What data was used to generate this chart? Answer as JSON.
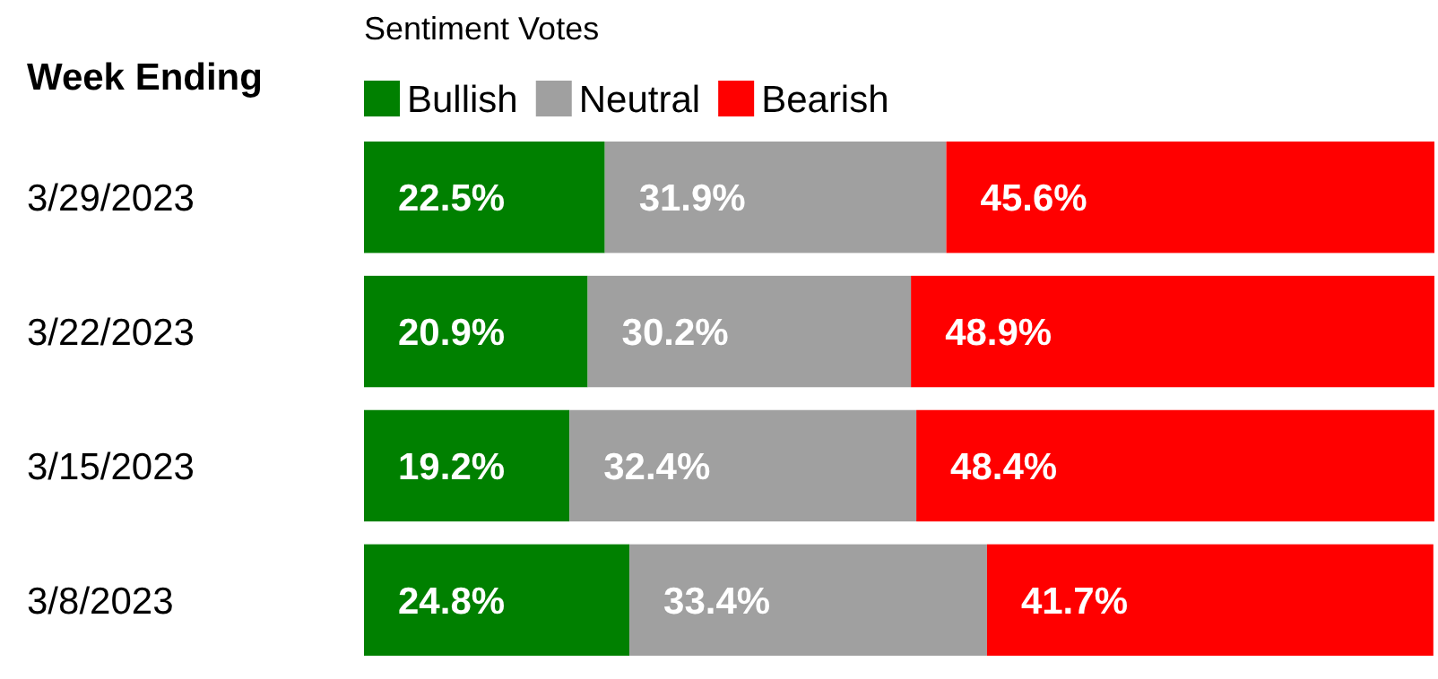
{
  "chart_data": {
    "type": "bar",
    "orientation": "horizontal",
    "stacked": true,
    "legend_title": "Sentiment Votes",
    "ylabel": "Week Ending",
    "categories": [
      "3/29/2023",
      "3/22/2023",
      "3/15/2023",
      "3/8/2023"
    ],
    "xlim": [
      0,
      100
    ],
    "tick_labels": "y",
    "legend": "top",
    "series": [
      {
        "name": "Bullish",
        "color": "#008000",
        "values": [
          22.5,
          20.9,
          19.2,
          24.8
        ],
        "value_labels": [
          "22.5%",
          "20.9%",
          "19.2%",
          "24.8%"
        ]
      },
      {
        "name": "Neutral",
        "color": "#a0a0a0",
        "values": [
          31.9,
          30.2,
          32.4,
          33.4
        ],
        "value_labels": [
          "31.9%",
          "30.2%",
          "32.4%",
          "33.4%"
        ]
      },
      {
        "name": "Bearish",
        "color": "#ff0000",
        "values": [
          45.6,
          48.9,
          48.4,
          41.7
        ],
        "value_labels": [
          "45.6%",
          "48.9%",
          "48.4%",
          "41.7%"
        ]
      }
    ]
  }
}
